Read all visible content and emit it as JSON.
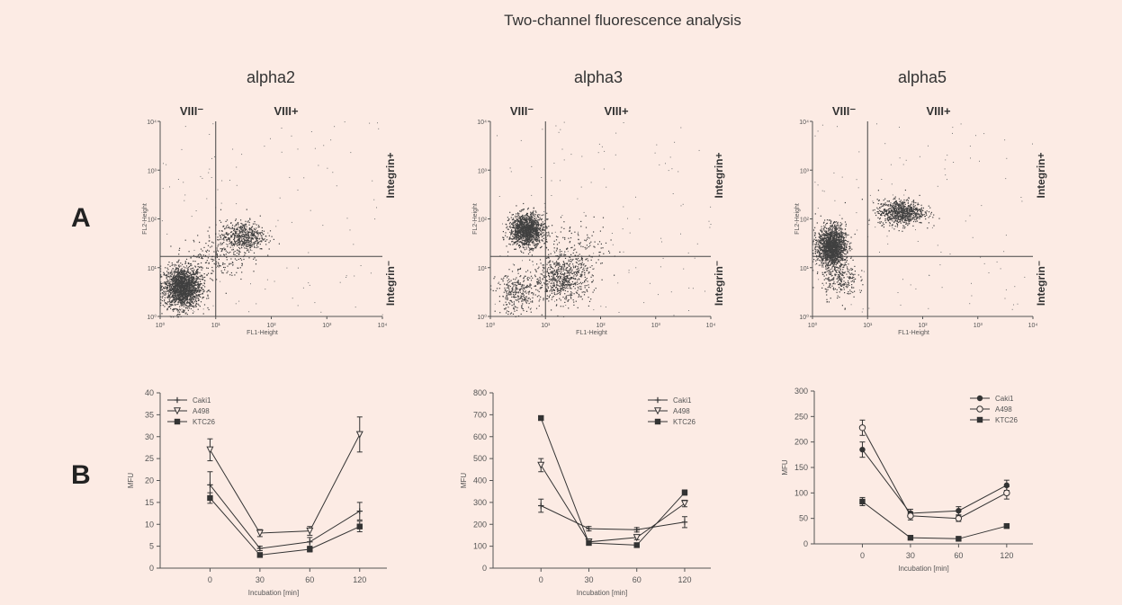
{
  "figure_title": "Two-channel fluorescence analysis",
  "panel_labels": [
    "A",
    "B"
  ],
  "colors": {
    "background": "#fcebe4",
    "ink": "#333333",
    "dots": "#404040"
  },
  "chart_data": [
    {
      "type": "scatter",
      "title": "alpha2",
      "xlabel": "FL1-Height",
      "ylabel": "FL2-Height",
      "xscale": "log",
      "yscale": "log",
      "xlim": [
        1,
        10000
      ],
      "ylim": [
        1,
        10000
      ],
      "xticks": [
        "10⁰",
        "10¹",
        "10²",
        "10³",
        "10⁴"
      ],
      "yticks": [
        "10⁰",
        "10¹",
        "10²",
        "10³",
        "10⁴"
      ],
      "quadrant_gates": {
        "x": 10,
        "y": 17
      },
      "quadrant_labels": {
        "top_left": "VIII⁻",
        "top_right": "VIII+",
        "right_upper": "Integrin+",
        "right_lower": "Integrin⁻"
      },
      "clusters": [
        {
          "cx": 2.5,
          "cy": 4,
          "sx": 2.0,
          "sy": 2.4,
          "n": 1900
        },
        {
          "cx": 30,
          "cy": 45,
          "sx": 2.3,
          "sy": 1.9,
          "n": 550
        },
        {
          "cx": 10,
          "cy": 17,
          "sx": 3.2,
          "sy": 2.8,
          "n": 200
        }
      ]
    },
    {
      "type": "scatter",
      "title": "alpha3",
      "xlabel": "FL1-Height",
      "ylabel": "FL2-Height",
      "xscale": "log",
      "yscale": "log",
      "xlim": [
        1,
        10000
      ],
      "ylim": [
        1,
        10000
      ],
      "xticks": [
        "10⁰",
        "10¹",
        "10²",
        "10³",
        "10⁴"
      ],
      "yticks": [
        "10⁰",
        "10¹",
        "10²",
        "10³",
        "10⁴"
      ],
      "quadrant_gates": {
        "x": 10,
        "y": 17
      },
      "quadrant_labels": {
        "top_left": "VIII⁻",
        "top_right": "VIII+",
        "right_upper": "Integrin+",
        "right_lower": "Integrin⁻"
      },
      "clusters": [
        {
          "cx": 4.5,
          "cy": 60,
          "sx": 1.9,
          "sy": 2.0,
          "n": 1400
        },
        {
          "cx": 20,
          "cy": 6,
          "sx": 3.0,
          "sy": 2.6,
          "n": 650
        },
        {
          "cx": 3,
          "cy": 3,
          "sx": 2.2,
          "sy": 2.4,
          "n": 300
        },
        {
          "cx": 40,
          "cy": 25,
          "sx": 3.5,
          "sy": 3.0,
          "n": 150
        }
      ]
    },
    {
      "type": "scatter",
      "title": "alpha5",
      "xlabel": "FL1-Height",
      "ylabel": "FL2-Height",
      "xscale": "log",
      "yscale": "log",
      "xlim": [
        1,
        10000
      ],
      "ylim": [
        1,
        10000
      ],
      "xticks": [
        "10⁰",
        "10¹",
        "10²",
        "10³",
        "10⁴"
      ],
      "yticks": [
        "10⁰",
        "10¹",
        "10²",
        "10³",
        "10⁴"
      ],
      "quadrant_gates": {
        "x": 10,
        "y": 17
      },
      "quadrant_labels": {
        "top_left": "VIII⁻",
        "top_right": "VIII+",
        "right_upper": "Integrin+",
        "right_lower": "Integrin⁻"
      },
      "clusters": [
        {
          "cx": 2.2,
          "cy": 28,
          "sx": 1.7,
          "sy": 2.4,
          "n": 1700
        },
        {
          "cx": 40,
          "cy": 140,
          "sx": 2.4,
          "sy": 1.7,
          "n": 800
        },
        {
          "cx": 3,
          "cy": 6,
          "sx": 2.0,
          "sy": 2.3,
          "n": 250
        }
      ]
    },
    {
      "type": "line",
      "xlabel": "Incubation [min]",
      "ylabel": "MFU",
      "categories": [
        "0",
        "30",
        "60",
        "120"
      ],
      "ylim": [
        0,
        40
      ],
      "yticks": [
        0,
        5,
        10,
        15,
        20,
        25,
        30,
        35,
        40
      ],
      "legend_position": "top-left",
      "series": [
        {
          "name": "Caki1",
          "marker": "plus",
          "values": [
            19,
            4.5,
            6,
            13
          ],
          "errors": [
            3,
            0.5,
            1,
            2
          ]
        },
        {
          "name": "A498",
          "marker": "triangle-down",
          "values": [
            27,
            8,
            8.5,
            30.5
          ],
          "errors": [
            2.5,
            0.8,
            1,
            4
          ]
        },
        {
          "name": "KTC26",
          "marker": "square",
          "values": [
            16,
            3,
            4.3,
            9.5
          ],
          "errors": [
            1.2,
            0.4,
            0.6,
            1.2
          ]
        }
      ]
    },
    {
      "type": "line",
      "xlabel": "Incubation [min]",
      "ylabel": "MFU",
      "categories": [
        "0",
        "30",
        "60",
        "120"
      ],
      "ylim": [
        0,
        800
      ],
      "yticks": [
        0,
        100,
        200,
        300,
        400,
        500,
        600,
        700,
        800
      ],
      "legend_position": "top-right",
      "series": [
        {
          "name": "Caki1",
          "marker": "plus",
          "values": [
            285,
            180,
            175,
            210
          ],
          "errors": [
            30,
            10,
            10,
            25
          ]
        },
        {
          "name": "A498",
          "marker": "triangle-down",
          "values": [
            470,
            120,
            140,
            295
          ],
          "errors": [
            30,
            10,
            10,
            15
          ]
        },
        {
          "name": "KTC26",
          "marker": "square",
          "values": [
            685,
            115,
            105,
            345
          ],
          "errors": [
            10,
            10,
            8,
            12
          ]
        }
      ]
    },
    {
      "type": "line",
      "xlabel": "Incubation [min]",
      "ylabel": "MFU",
      "categories": [
        "0",
        "30",
        "60",
        "120"
      ],
      "ylim": [
        0,
        300
      ],
      "yticks": [
        0,
        50,
        100,
        150,
        200,
        250,
        300
      ],
      "legend_position": "top-right",
      "series": [
        {
          "name": "Caki1",
          "marker": "circle-filled",
          "values": [
            185,
            60,
            65,
            115
          ],
          "errors": [
            15,
            8,
            8,
            10
          ]
        },
        {
          "name": "A498",
          "marker": "circle-open",
          "values": [
            228,
            55,
            50,
            100
          ],
          "errors": [
            15,
            8,
            6,
            12
          ]
        },
        {
          "name": "KTC26",
          "marker": "square",
          "values": [
            83,
            12,
            10,
            35
          ],
          "errors": [
            8,
            3,
            3,
            4
          ]
        }
      ]
    }
  ]
}
